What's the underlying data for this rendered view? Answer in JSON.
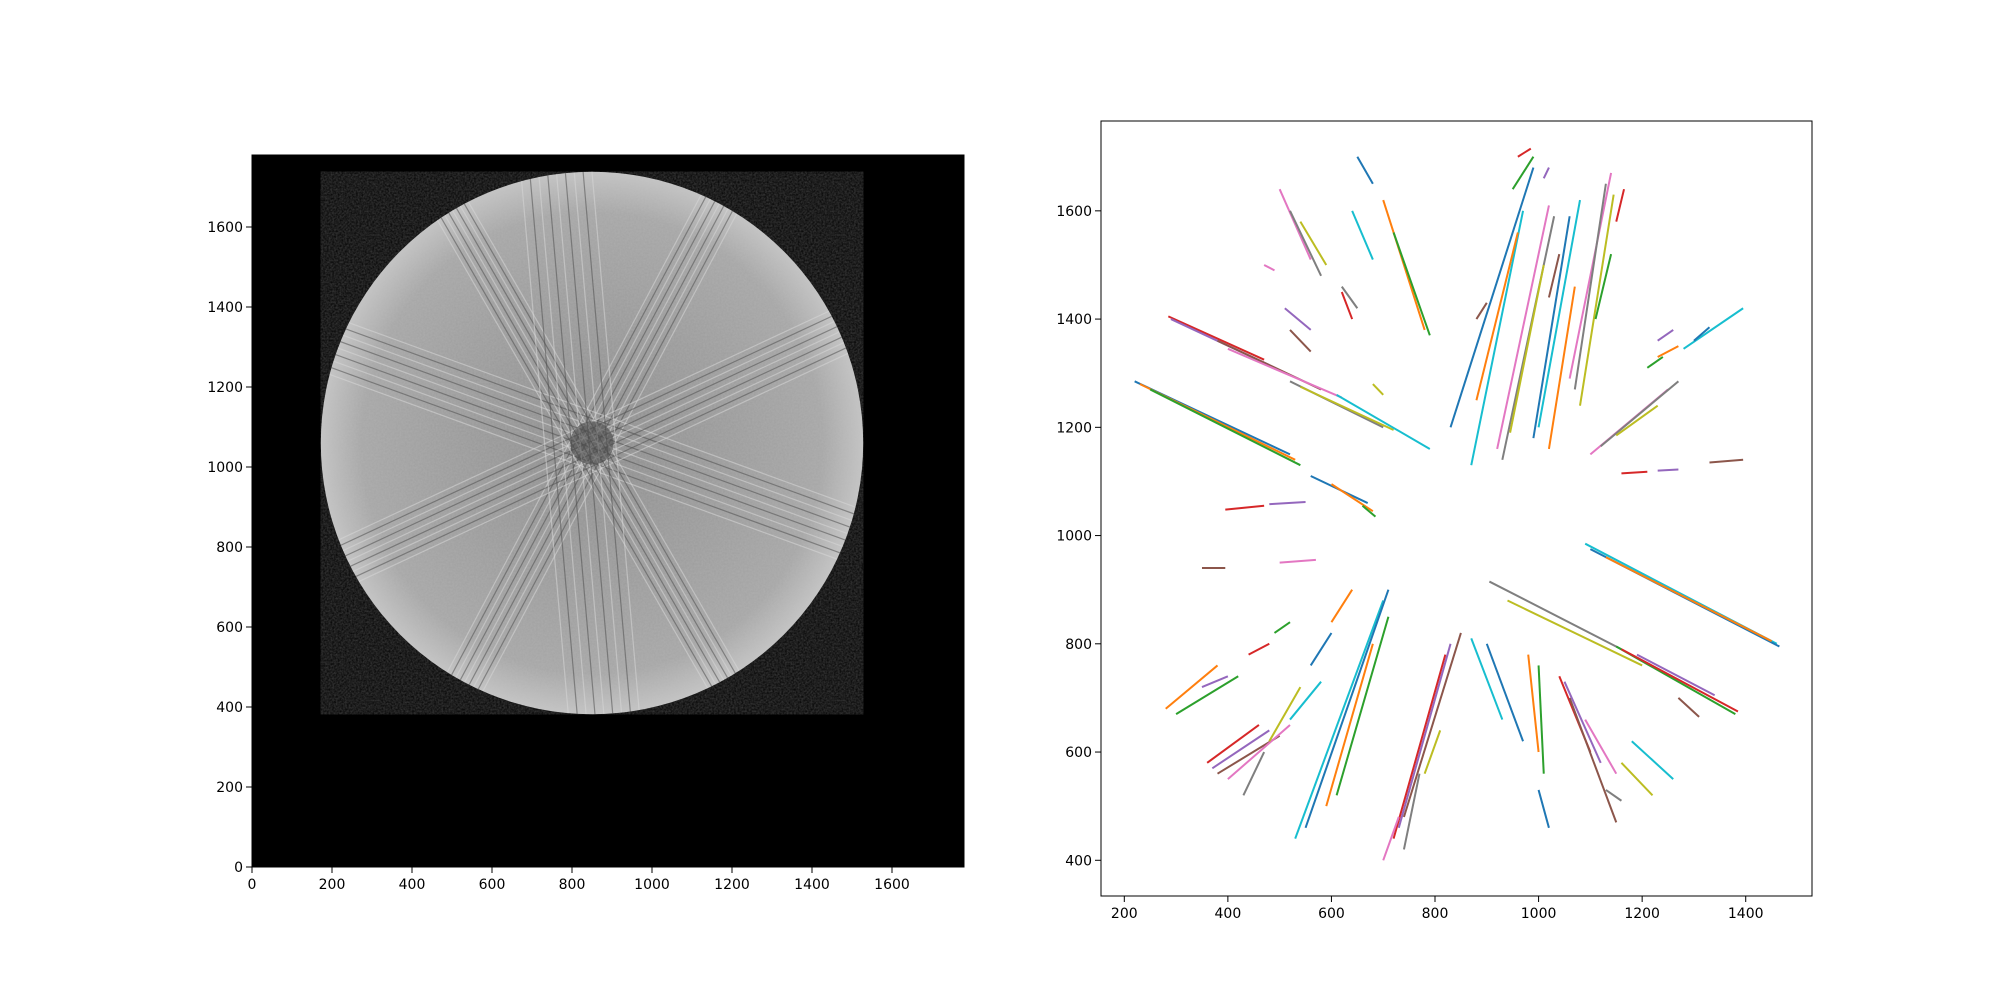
{
  "chart_data": [
    {
      "type": "image",
      "title": "",
      "xlabel": "",
      "ylabel": "",
      "xlim": [
        0,
        1780
      ],
      "ylim": [
        0,
        1780
      ],
      "xticks": [
        0,
        200,
        400,
        600,
        800,
        1000,
        1200,
        1400,
        1600
      ],
      "yticks": [
        0,
        200,
        400,
        600,
        800,
        1000,
        1200,
        1400,
        1600
      ],
      "image": {
        "colormap": "gray",
        "background": "#000000",
        "disk_center": [
          850,
          1060
        ],
        "disk_radius": 678,
        "streak_directions_deg": [
          62,
          160,
          25,
          120,
          95
        ]
      }
    },
    {
      "type": "line",
      "title": "",
      "xlabel": "",
      "ylabel": "",
      "xlim": [
        155,
        1528
      ],
      "ylim": [
        334,
        1766
      ],
      "xticks": [
        200,
        400,
        600,
        800,
        1000,
        1200,
        1400
      ],
      "yticks": [
        400,
        600,
        800,
        1000,
        1200,
        1400,
        1600
      ],
      "colors": [
        "#1f77b4",
        "#ff7f0e",
        "#2ca02c",
        "#d62728",
        "#9467bd",
        "#8c564b",
        "#e377c2",
        "#7f7f7f",
        "#bcbd22",
        "#17becf"
      ],
      "segments": [
        [
          [
            220,
            1285
          ],
          [
            520,
            1150
          ]
        ],
        [
          [
            230,
            1280
          ],
          [
            530,
            1140
          ]
        ],
        [
          [
            250,
            1270
          ],
          [
            540,
            1130
          ]
        ],
        [
          [
            285,
            1405
          ],
          [
            470,
            1325
          ]
        ],
        [
          [
            290,
            1400
          ],
          [
            480,
            1315
          ]
        ],
        [
          [
            380,
            1360
          ],
          [
            580,
            1270
          ]
        ],
        [
          [
            400,
            1345
          ],
          [
            620,
            1255
          ]
        ],
        [
          [
            520,
            1285
          ],
          [
            700,
            1200
          ]
        ],
        [
          [
            540,
            1275
          ],
          [
            720,
            1195
          ]
        ],
        [
          [
            610,
            1260
          ],
          [
            790,
            1160
          ]
        ],
        [
          [
            560,
            1110
          ],
          [
            670,
            1060
          ]
        ],
        [
          [
            600,
            1095
          ],
          [
            680,
            1045
          ]
        ],
        [
          [
            660,
            1055
          ],
          [
            685,
            1035
          ]
        ],
        [
          [
            395,
            1048
          ],
          [
            470,
            1055
          ]
        ],
        [
          [
            480,
            1058
          ],
          [
            550,
            1062
          ]
        ],
        [
          [
            350,
            940
          ],
          [
            395,
            940
          ]
        ],
        [
          [
            500,
            950
          ],
          [
            570,
            955
          ]
        ],
        [
          [
            905,
            915
          ],
          [
            1160,
            790
          ]
        ],
        [
          [
            940,
            880
          ],
          [
            1200,
            760
          ]
        ],
        [
          [
            1090,
            985
          ],
          [
            1460,
            800
          ]
        ],
        [
          [
            1100,
            975
          ],
          [
            1465,
            795
          ]
        ],
        [
          [
            1130,
            960
          ],
          [
            1450,
            805
          ]
        ],
        [
          [
            1150,
            795
          ],
          [
            1380,
            670
          ]
        ],
        [
          [
            1160,
            790
          ],
          [
            1385,
            675
          ]
        ],
        [
          [
            1190,
            780
          ],
          [
            1340,
            705
          ]
        ],
        [
          [
            1270,
            700
          ],
          [
            1310,
            665
          ]
        ],
        [
          [
            1100,
            1150
          ],
          [
            1250,
            1270
          ]
        ],
        [
          [
            1120,
            1165
          ],
          [
            1270,
            1285
          ]
        ],
        [
          [
            1150,
            1185
          ],
          [
            1230,
            1240
          ]
        ],
        [
          [
            1280,
            1345
          ],
          [
            1395,
            1420
          ]
        ],
        [
          [
            1300,
            1360
          ],
          [
            1330,
            1385
          ]
        ],
        [
          [
            1230,
            1330
          ],
          [
            1270,
            1350
          ]
        ],
        [
          [
            1210,
            1310
          ],
          [
            1240,
            1330
          ]
        ],
        [
          [
            1160,
            1115
          ],
          [
            1210,
            1118
          ]
        ],
        [
          [
            1230,
            1120
          ],
          [
            1270,
            1122
          ]
        ],
        [
          [
            1330,
            1135
          ],
          [
            1395,
            1140
          ]
        ],
        [
          [
            1060,
            1290
          ],
          [
            1140,
            1670
          ]
        ],
        [
          [
            1070,
            1270
          ],
          [
            1130,
            1650
          ]
        ],
        [
          [
            1080,
            1240
          ],
          [
            1145,
            1630
          ]
        ],
        [
          [
            1000,
            1200
          ],
          [
            1080,
            1620
          ]
        ],
        [
          [
            990,
            1180
          ],
          [
            1060,
            1590
          ]
        ],
        [
          [
            1020,
            1160
          ],
          [
            1070,
            1460
          ]
        ],
        [
          [
            1110,
            1400
          ],
          [
            1140,
            1520
          ]
        ],
        [
          [
            1150,
            1580
          ],
          [
            1165,
            1640
          ]
        ],
        [
          [
            1230,
            1360
          ],
          [
            1260,
            1380
          ]
        ],
        [
          [
            1020,
            1440
          ],
          [
            1040,
            1520
          ]
        ],
        [
          [
            920,
            1160
          ],
          [
            1020,
            1610
          ]
        ],
        [
          [
            930,
            1140
          ],
          [
            1030,
            1590
          ]
        ],
        [
          [
            945,
            1190
          ],
          [
            1010,
            1500
          ]
        ],
        [
          [
            870,
            1130
          ],
          [
            970,
            1600
          ]
        ],
        [
          [
            830,
            1200
          ],
          [
            990,
            1680
          ]
        ],
        [
          [
            880,
            1250
          ],
          [
            960,
            1560
          ]
        ],
        [
          [
            950,
            1640
          ],
          [
            990,
            1700
          ]
        ],
        [
          [
            960,
            1700
          ],
          [
            985,
            1715
          ]
        ],
        [
          [
            1010,
            1660
          ],
          [
            1020,
            1680
          ]
        ],
        [
          [
            880,
            1400
          ],
          [
            900,
            1430
          ]
        ],
        [
          [
            500,
            1640
          ],
          [
            560,
            1510
          ]
        ],
        [
          [
            520,
            1600
          ],
          [
            580,
            1480
          ]
        ],
        [
          [
            540,
            1580
          ],
          [
            590,
            1500
          ]
        ],
        [
          [
            640,
            1600
          ],
          [
            680,
            1510
          ]
        ],
        [
          [
            650,
            1700
          ],
          [
            680,
            1650
          ]
        ],
        [
          [
            700,
            1620
          ],
          [
            780,
            1380
          ]
        ],
        [
          [
            720,
            1560
          ],
          [
            790,
            1370
          ]
        ],
        [
          [
            620,
            1450
          ],
          [
            640,
            1400
          ]
        ],
        [
          [
            510,
            1420
          ],
          [
            560,
            1380
          ]
        ],
        [
          [
            520,
            1380
          ],
          [
            560,
            1340
          ]
        ],
        [
          [
            470,
            1500
          ],
          [
            490,
            1490
          ]
        ],
        [
          [
            620,
            1460
          ],
          [
            650,
            1420
          ]
        ],
        [
          [
            680,
            1280
          ],
          [
            700,
            1260
          ]
        ],
        [
          [
            530,
            440
          ],
          [
            700,
            880
          ]
        ],
        [
          [
            550,
            460
          ],
          [
            710,
            900
          ]
        ],
        [
          [
            590,
            500
          ],
          [
            680,
            800
          ]
        ],
        [
          [
            610,
            520
          ],
          [
            710,
            850
          ]
        ],
        [
          [
            720,
            440
          ],
          [
            820,
            780
          ]
        ],
        [
          [
            730,
            460
          ],
          [
            830,
            800
          ]
        ],
        [
          [
            740,
            480
          ],
          [
            850,
            820
          ]
        ],
        [
          [
            700,
            400
          ],
          [
            730,
            480
          ]
        ],
        [
          [
            740,
            420
          ],
          [
            770,
            560
          ]
        ],
        [
          [
            780,
            560
          ],
          [
            810,
            640
          ]
        ],
        [
          [
            870,
            810
          ],
          [
            930,
            660
          ]
        ],
        [
          [
            900,
            800
          ],
          [
            970,
            620
          ]
        ],
        [
          [
            980,
            780
          ],
          [
            1000,
            600
          ]
        ],
        [
          [
            1000,
            760
          ],
          [
            1010,
            560
          ]
        ],
        [
          [
            1040,
            740
          ],
          [
            1100,
            600
          ]
        ],
        [
          [
            1050,
            730
          ],
          [
            1120,
            580
          ]
        ],
        [
          [
            1060,
            700
          ],
          [
            1150,
            470
          ]
        ],
        [
          [
            1090,
            660
          ],
          [
            1150,
            560
          ]
        ],
        [
          [
            1130,
            530
          ],
          [
            1160,
            510
          ]
        ],
        [
          [
            1160,
            580
          ],
          [
            1220,
            520
          ]
        ],
        [
          [
            1180,
            620
          ],
          [
            1260,
            550
          ]
        ],
        [
          [
            1000,
            530
          ],
          [
            1020,
            460
          ]
        ],
        [
          [
            280,
            680
          ],
          [
            380,
            760
          ]
        ],
        [
          [
            300,
            670
          ],
          [
            420,
            740
          ]
        ],
        [
          [
            360,
            580
          ],
          [
            460,
            650
          ]
        ],
        [
          [
            370,
            570
          ],
          [
            480,
            640
          ]
        ],
        [
          [
            380,
            560
          ],
          [
            500,
            630
          ]
        ],
        [
          [
            400,
            550
          ],
          [
            520,
            650
          ]
        ],
        [
          [
            430,
            520
          ],
          [
            470,
            600
          ]
        ],
        [
          [
            480,
            620
          ],
          [
            540,
            720
          ]
        ],
        [
          [
            520,
            660
          ],
          [
            580,
            730
          ]
        ],
        [
          [
            560,
            760
          ],
          [
            600,
            820
          ]
        ],
        [
          [
            600,
            840
          ],
          [
            640,
            900
          ]
        ],
        [
          [
            490,
            820
          ],
          [
            520,
            840
          ]
        ],
        [
          [
            440,
            780
          ],
          [
            480,
            800
          ]
        ],
        [
          [
            350,
            720
          ],
          [
            400,
            740
          ]
        ]
      ]
    }
  ]
}
